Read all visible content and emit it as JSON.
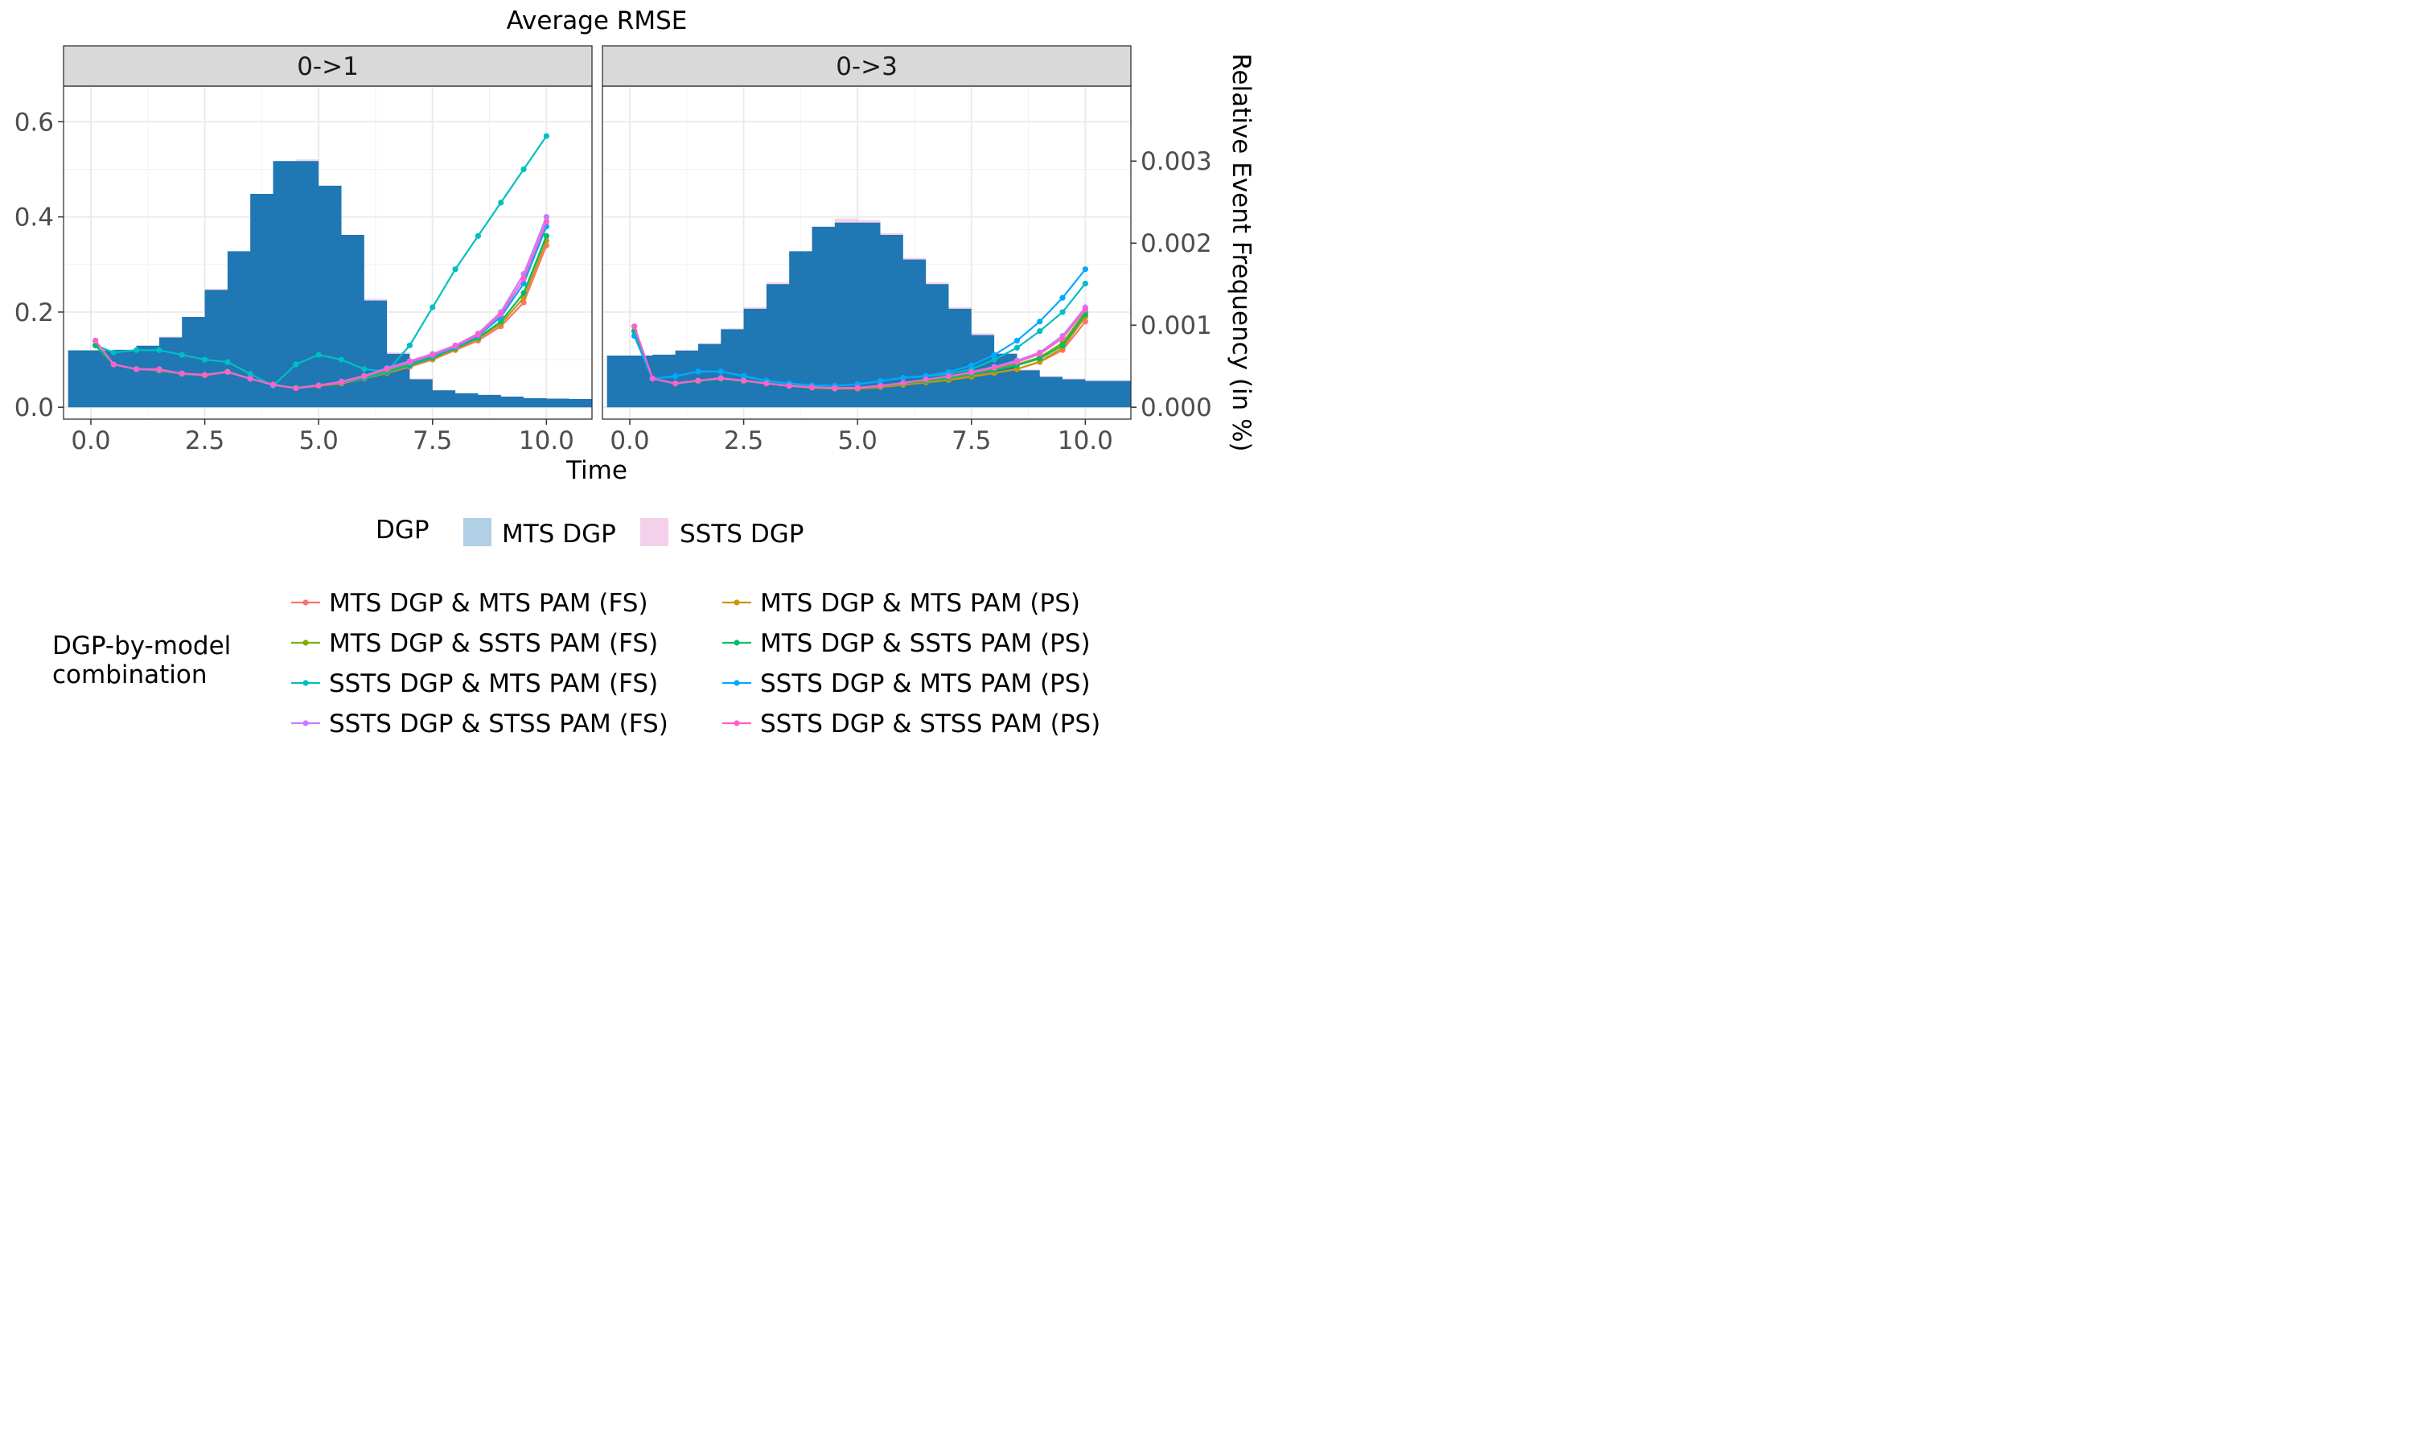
{
  "chart_data": {
    "type": "line",
    "title": "Average RMSE",
    "xlabel": "Time",
    "ylabel_right": "Relative Event Frequency (in %)",
    "x_ticks": [
      "0.0",
      "2.5",
      "5.0",
      "7.5",
      "10.0"
    ],
    "xlim": [
      -0.6,
      11.0
    ],
    "y_left_ticks": [
      "0.0",
      "0.2",
      "0.4",
      "0.6"
    ],
    "ylim_left": [
      -0.025,
      0.675
    ],
    "y_right_ticks": [
      "0.000",
      "0.001",
      "0.002",
      "0.003"
    ],
    "ylim_right": [
      -0.000145,
      0.003914
    ],
    "grid": true,
    "panels": [
      {
        "strip": "0->1",
        "histogram": {
          "x": [
            -0.5,
            0.0,
            0.5,
            1.0,
            1.5,
            2.0,
            2.5,
            3.0,
            3.5,
            4.0,
            4.5,
            5.0,
            5.5,
            6.0,
            6.5,
            7.0,
            7.5,
            8.0,
            8.5,
            9.0,
            9.5,
            10.0,
            10.5
          ],
          "mts": [
            0.000693,
            0.000693,
            0.0007,
            0.00075,
            0.00085,
            0.0011,
            0.00143,
            0.0019,
            0.0026,
            0.003,
            0.003,
            0.0027,
            0.0021,
            0.0013,
            0.00065,
            0.00034,
            0.000205,
            0.00017,
            0.00015,
            0.00013,
            0.00011,
            0.000105,
            0.0001
          ],
          "ssts": [
            0.000693,
            0.000693,
            0.0007,
            0.00075,
            0.00086,
            0.0011,
            0.00144,
            0.0019,
            0.0026,
            0.003,
            0.00302,
            0.0027,
            0.0021,
            0.00132,
            0.00067,
            0.00035,
            0.00021,
            0.00017,
            0.00015,
            0.00013,
            0.00011,
            0.000105,
            0.0001
          ]
        },
        "x": [
          0.1,
          0.5,
          1.0,
          1.5,
          2.0,
          2.5,
          3.0,
          3.5,
          4.0,
          4.5,
          5.0,
          5.5,
          6.0,
          6.5,
          7.0,
          7.5,
          8.0,
          8.5,
          9.0,
          9.5,
          10.0
        ],
        "series": [
          {
            "name": "MTS DGP & MTS PAM (FS)",
            "color": "#F8766D",
            "values": [
              0.13,
              0.09,
              0.08,
              0.078,
              0.07,
              0.068,
              0.075,
              0.06,
              0.048,
              0.04,
              0.045,
              0.05,
              0.06,
              0.072,
              0.085,
              0.1,
              0.12,
              0.14,
              0.17,
              0.22,
              0.34
            ]
          },
          {
            "name": "MTS DGP & SSTS PAM (FS)",
            "color": "#7CAE00",
            "values": [
              0.13,
              0.09,
              0.08,
              0.078,
              0.07,
              0.068,
              0.075,
              0.06,
              0.047,
              0.041,
              0.046,
              0.052,
              0.062,
              0.076,
              0.09,
              0.108,
              0.128,
              0.15,
              0.19,
              0.26,
              0.39
            ]
          },
          {
            "name": "SSTS DGP & MTS PAM (FS)",
            "color": "#00BFC4",
            "values": [
              0.13,
              0.115,
              0.12,
              0.12,
              0.11,
              0.1,
              0.095,
              0.07,
              0.045,
              0.09,
              0.11,
              0.1,
              0.08,
              0.075,
              0.13,
              0.21,
              0.29,
              0.36,
              0.43,
              0.5,
              0.57
            ]
          },
          {
            "name": "SSTS DGP & STSS PAM (FS)",
            "color": "#C77CFF",
            "values": [
              0.14,
              0.09,
              0.08,
              0.08,
              0.07,
              0.068,
              0.074,
              0.06,
              0.047,
              0.04,
              0.046,
              0.054,
              0.066,
              0.082,
              0.097,
              0.112,
              0.13,
              0.155,
              0.2,
              0.28,
              0.4
            ]
          },
          {
            "name": "MTS DGP & MTS PAM (PS)",
            "color": "#CD9600",
            "values": [
              0.13,
              0.09,
              0.08,
              0.077,
              0.07,
              0.067,
              0.074,
              0.06,
              0.047,
              0.04,
              0.045,
              0.051,
              0.061,
              0.073,
              0.087,
              0.102,
              0.122,
              0.144,
              0.175,
              0.23,
              0.35
            ]
          },
          {
            "name": "MTS DGP & SSTS PAM (PS)",
            "color": "#00BE67",
            "values": [
              0.13,
              0.09,
              0.08,
              0.078,
              0.07,
              0.068,
              0.075,
              0.06,
              0.047,
              0.041,
              0.046,
              0.052,
              0.061,
              0.074,
              0.088,
              0.104,
              0.124,
              0.146,
              0.18,
              0.24,
              0.36
            ]
          },
          {
            "name": "SSTS DGP & MTS PAM (PS)",
            "color": "#00A9FF",
            "values": [
              0.14,
              0.09,
              0.08,
              0.079,
              0.071,
              0.068,
              0.074,
              0.06,
              0.047,
              0.04,
              0.046,
              0.053,
              0.064,
              0.079,
              0.093,
              0.108,
              0.126,
              0.15,
              0.19,
              0.26,
              0.38
            ]
          },
          {
            "name": "SSTS DGP & STSS PAM (PS)",
            "color": "#FF61CC",
            "values": [
              0.14,
              0.09,
              0.08,
              0.079,
              0.071,
              0.068,
              0.074,
              0.06,
              0.047,
              0.04,
              0.046,
              0.053,
              0.065,
              0.08,
              0.095,
              0.11,
              0.128,
              0.152,
              0.195,
              0.27,
              0.39
            ]
          }
        ]
      },
      {
        "strip": "0->3",
        "histogram": {
          "x": [
            -0.5,
            0.0,
            0.5,
            1.0,
            1.5,
            2.0,
            2.5,
            3.0,
            3.5,
            4.0,
            4.5,
            5.0,
            5.5,
            6.0,
            6.5,
            7.0,
            7.5,
            8.0,
            8.5,
            9.0,
            9.5,
            10.0,
            10.5
          ],
          "mts": [
            0.00063,
            0.00063,
            0.00064,
            0.00069,
            0.00077,
            0.00095,
            0.0012,
            0.0015,
            0.0019,
            0.0022,
            0.00225,
            0.00225,
            0.0021,
            0.0018,
            0.0015,
            0.0012,
            0.00088,
            0.00065,
            0.00045,
            0.00037,
            0.00034,
            0.00032,
            0.00032
          ],
          "ssts": [
            0.00063,
            0.00063,
            0.00064,
            0.0007,
            0.00078,
            0.00096,
            0.00122,
            0.00152,
            0.0019,
            0.0022,
            0.0023,
            0.00228,
            0.00212,
            0.00182,
            0.00152,
            0.00122,
            0.0009,
            0.00066,
            0.00046,
            0.00038,
            0.00035,
            0.00033,
            0.00033
          ]
        },
        "x": [
          0.1,
          0.5,
          1.0,
          1.5,
          2.0,
          2.5,
          3.0,
          3.5,
          4.0,
          4.5,
          5.0,
          5.5,
          6.0,
          6.5,
          7.0,
          7.5,
          8.0,
          8.5,
          9.0,
          9.5,
          10.0
        ],
        "series": [
          {
            "name": "MTS DGP & MTS PAM (FS)",
            "color": "#F8766D",
            "values": [
              0.16,
              0.06,
              0.05,
              0.055,
              0.06,
              0.055,
              0.05,
              0.045,
              0.042,
              0.04,
              0.04,
              0.043,
              0.048,
              0.053,
              0.058,
              0.065,
              0.072,
              0.08,
              0.095,
              0.12,
              0.18
            ]
          },
          {
            "name": "MTS DGP & SSTS PAM (FS)",
            "color": "#7CAE00",
            "values": [
              0.16,
              0.06,
              0.05,
              0.055,
              0.06,
              0.055,
              0.05,
              0.045,
              0.042,
              0.04,
              0.041,
              0.044,
              0.05,
              0.056,
              0.062,
              0.07,
              0.08,
              0.09,
              0.105,
              0.135,
              0.2
            ]
          },
          {
            "name": "SSTS DGP & MTS PAM (FS)",
            "color": "#00BFC4",
            "values": [
              0.15,
              0.06,
              0.065,
              0.075,
              0.075,
              0.065,
              0.055,
              0.05,
              0.046,
              0.045,
              0.048,
              0.055,
              0.062,
              0.065,
              0.07,
              0.08,
              0.1,
              0.125,
              0.16,
              0.2,
              0.26
            ]
          },
          {
            "name": "SSTS DGP & STSS PAM (FS)",
            "color": "#C77CFF",
            "values": [
              0.17,
              0.06,
              0.05,
              0.056,
              0.061,
              0.056,
              0.05,
              0.045,
              0.042,
              0.04,
              0.041,
              0.045,
              0.051,
              0.058,
              0.065,
              0.074,
              0.085,
              0.098,
              0.115,
              0.15,
              0.21
            ]
          },
          {
            "name": "MTS DGP & MTS PAM (PS)",
            "color": "#CD9600",
            "values": [
              0.16,
              0.06,
              0.05,
              0.055,
              0.06,
              0.055,
              0.05,
              0.045,
              0.041,
              0.039,
              0.039,
              0.042,
              0.047,
              0.052,
              0.057,
              0.064,
              0.072,
              0.08,
              0.096,
              0.125,
              0.19
            ]
          },
          {
            "name": "MTS DGP & SSTS PAM (PS)",
            "color": "#00BE67",
            "values": [
              0.16,
              0.06,
              0.05,
              0.055,
              0.06,
              0.055,
              0.05,
              0.045,
              0.042,
              0.04,
              0.041,
              0.044,
              0.05,
              0.055,
              0.061,
              0.069,
              0.078,
              0.088,
              0.102,
              0.13,
              0.195
            ]
          },
          {
            "name": "SSTS DGP & MTS PAM (PS)",
            "color": "#00A9FF",
            "values": [
              0.15,
              0.06,
              0.065,
              0.075,
              0.075,
              0.066,
              0.056,
              0.05,
              0.046,
              0.045,
              0.048,
              0.055,
              0.062,
              0.066,
              0.074,
              0.088,
              0.11,
              0.14,
              0.18,
              0.23,
              0.29
            ]
          },
          {
            "name": "SSTS DGP & STSS PAM (PS)",
            "color": "#FF61CC",
            "values": [
              0.17,
              0.06,
              0.05,
              0.056,
              0.061,
              0.056,
              0.05,
              0.045,
              0.042,
              0.04,
              0.041,
              0.045,
              0.051,
              0.058,
              0.065,
              0.073,
              0.083,
              0.095,
              0.112,
              0.145,
              0.205
            ]
          }
        ]
      }
    ],
    "legend_fill": {
      "title": "DGP",
      "items": [
        {
          "label": "MTS DGP",
          "color": "#1f77b4"
        },
        {
          "label": "SSTS DGP",
          "color": "#e377c2"
        }
      ]
    },
    "legend_lines": {
      "title_line1": "DGP-by-model",
      "title_line2": "combination",
      "items": [
        {
          "label": "MTS DGP & MTS PAM (FS)",
          "color": "#F8766D"
        },
        {
          "label": "MTS DGP & SSTS PAM (FS)",
          "color": "#7CAE00"
        },
        {
          "label": "SSTS DGP & MTS PAM (FS)",
          "color": "#00BFC4"
        },
        {
          "label": "SSTS DGP & STSS PAM (FS)",
          "color": "#C77CFF"
        },
        {
          "label": "MTS DGP & MTS PAM (PS)",
          "color": "#CD9600"
        },
        {
          "label": "MTS DGP & SSTS PAM (PS)",
          "color": "#00BE67"
        },
        {
          "label": "SSTS DGP & MTS PAM (PS)",
          "color": "#00A9FF"
        },
        {
          "label": "SSTS DGP & STSS PAM (PS)",
          "color": "#FF61CC"
        }
      ]
    }
  }
}
